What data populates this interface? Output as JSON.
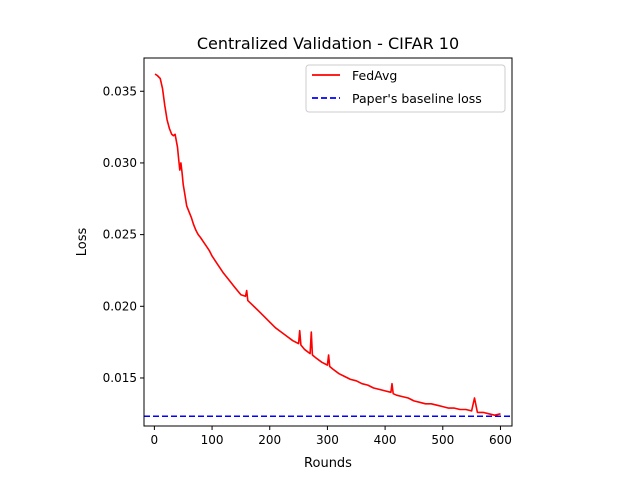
{
  "chart_data": {
    "type": "line",
    "title": "Centralized Validation - CIFAR 10",
    "xlabel": "Rounds",
    "ylabel": "Loss",
    "xlim": [
      -18,
      620
    ],
    "ylim": [
      0.01165,
      0.03732
    ],
    "xticks": [
      0,
      100,
      200,
      300,
      400,
      500,
      600
    ],
    "xtick_labels": [
      "0",
      "100",
      "200",
      "300",
      "400",
      "500",
      "600"
    ],
    "yticks": [
      0.015,
      0.02,
      0.025,
      0.03,
      0.035
    ],
    "ytick_labels": [
      "0.015",
      "0.020",
      "0.025",
      "0.030",
      "0.035"
    ],
    "grid": false,
    "legend_position": "top-right",
    "series": [
      {
        "name": "FedAvg",
        "color": "#ff0000",
        "style": "solid",
        "x": [
          1,
          5,
          10,
          14,
          18,
          22,
          26,
          30,
          33,
          36,
          40,
          42,
          44,
          46,
          48,
          50,
          52,
          56,
          60,
          64,
          68,
          72,
          76,
          80,
          85,
          90,
          95,
          100,
          110,
          120,
          130,
          140,
          150,
          158,
          160,
          162,
          170,
          180,
          190,
          200,
          210,
          220,
          230,
          240,
          250,
          252,
          254,
          260,
          270,
          272,
          274,
          280,
          290,
          300,
          302,
          304,
          310,
          320,
          330,
          340,
          350,
          360,
          370,
          380,
          390,
          400,
          410,
          412,
          414,
          420,
          430,
          440,
          450,
          460,
          470,
          480,
          490,
          500,
          510,
          520,
          530,
          540,
          550,
          555,
          560,
          570,
          580,
          590,
          600
        ],
        "values": [
          0.0362,
          0.0361,
          0.0359,
          0.0352,
          0.034,
          0.033,
          0.0324,
          0.032,
          0.0319,
          0.032,
          0.0311,
          0.0303,
          0.0295,
          0.03,
          0.0293,
          0.0285,
          0.028,
          0.027,
          0.0266,
          0.0262,
          0.0257,
          0.0253,
          0.025,
          0.0248,
          0.0245,
          0.0242,
          0.0239,
          0.0235,
          0.0229,
          0.0223,
          0.0218,
          0.0213,
          0.0208,
          0.0207,
          0.0211,
          0.0204,
          0.0201,
          0.0197,
          0.0193,
          0.0189,
          0.0185,
          0.0182,
          0.0179,
          0.0176,
          0.0174,
          0.0183,
          0.0173,
          0.017,
          0.0167,
          0.0182,
          0.0166,
          0.0164,
          0.0161,
          0.0159,
          0.0166,
          0.0158,
          0.0156,
          0.0153,
          0.0151,
          0.0149,
          0.0148,
          0.0146,
          0.0145,
          0.0143,
          0.0142,
          0.0141,
          0.014,
          0.0146,
          0.0139,
          0.0138,
          0.0137,
          0.0136,
          0.0134,
          0.0133,
          0.0132,
          0.0132,
          0.0131,
          0.013,
          0.0129,
          0.0129,
          0.0128,
          0.0128,
          0.0127,
          0.0136,
          0.0126,
          0.0126,
          0.0125,
          0.0124,
          0.0125
        ]
      },
      {
        "name": "Paper's baseline loss",
        "color": "#0000ff",
        "style": "dashed",
        "hline": 0.01233
      }
    ]
  }
}
